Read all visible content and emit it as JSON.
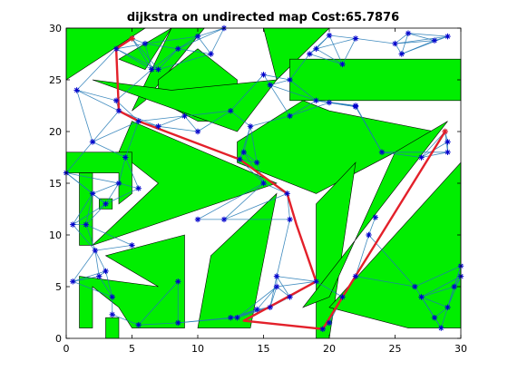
{
  "chart_data": {
    "type": "scatter",
    "title": "dijkstra on undirected map  Cost:65.7876",
    "xlabel": "",
    "ylabel": "",
    "xlim": [
      0,
      30
    ],
    "ylim": [
      0,
      30
    ],
    "xticks": [
      0,
      5,
      10,
      15,
      20,
      25,
      30
    ],
    "yticks": [
      0,
      5,
      10,
      15,
      20,
      25,
      30
    ],
    "colors": {
      "obstacle": "#00ee00",
      "edge": "#1f77b4",
      "path": "#e3202a",
      "node": "#0000cc"
    },
    "obstacles": [
      [
        [
          0,
          30
        ],
        [
          6,
          30
        ],
        [
          0,
          25
        ]
      ],
      [
        [
          4,
          27
        ],
        [
          8,
          30
        ],
        [
          6,
          26
        ]
      ],
      [
        [
          6,
          23
        ],
        [
          10.5,
          30
        ],
        [
          8,
          30
        ],
        [
          5,
          22
        ]
      ],
      [
        [
          7,
          25
        ],
        [
          10,
          28
        ],
        [
          13,
          25
        ],
        [
          13,
          21
        ],
        [
          10,
          21
        ],
        [
          7,
          23
        ]
      ],
      [
        [
          15,
          30
        ],
        [
          20,
          30
        ],
        [
          16,
          25
        ]
      ],
      [
        [
          17,
          27
        ],
        [
          30,
          27
        ],
        [
          30,
          23
        ],
        [
          17,
          23
        ]
      ],
      [
        [
          2,
          25
        ],
        [
          8,
          24
        ],
        [
          16,
          25
        ],
        [
          13,
          20
        ]
      ],
      [
        [
          13,
          19
        ],
        [
          18,
          23
        ],
        [
          20,
          22
        ],
        [
          28,
          20
        ],
        [
          25,
          18
        ],
        [
          19,
          14
        ],
        [
          13,
          17
        ]
      ],
      [
        [
          5,
          21
        ],
        [
          16,
          15
        ],
        [
          2,
          9
        ],
        [
          7,
          15
        ],
        [
          4,
          18
        ]
      ],
      [
        [
          0,
          18
        ],
        [
          5,
          18
        ],
        [
          5,
          14
        ],
        [
          4,
          13
        ],
        [
          4,
          16
        ],
        [
          0,
          16
        ]
      ],
      [
        [
          1,
          16
        ],
        [
          2,
          16
        ],
        [
          2,
          9
        ],
        [
          1,
          9
        ]
      ],
      [
        [
          2.5,
          13.5
        ],
        [
          3.5,
          13.5
        ],
        [
          3.5,
          12.5
        ],
        [
          2.5,
          12.5
        ]
      ],
      [
        [
          1,
          6
        ],
        [
          7,
          5
        ],
        [
          3,
          8
        ],
        [
          9,
          10
        ],
        [
          9,
          1
        ],
        [
          5,
          1
        ],
        [
          4,
          3
        ],
        [
          2,
          5
        ],
        [
          2,
          1
        ],
        [
          1,
          1
        ]
      ],
      [
        [
          11,
          8
        ],
        [
          16,
          14
        ],
        [
          14,
          1
        ],
        [
          10,
          1
        ]
      ],
      [
        [
          19,
          13
        ],
        [
          22,
          17
        ],
        [
          20,
          0
        ],
        [
          19,
          0
        ]
      ],
      [
        [
          25,
          18
        ],
        [
          29,
          21
        ],
        [
          18,
          3
        ],
        [
          20,
          4
        ]
      ],
      [
        [
          20,
          3
        ],
        [
          30,
          17
        ],
        [
          30,
          1
        ],
        [
          26,
          1
        ]
      ],
      [
        [
          3,
          2
        ],
        [
          4,
          2
        ],
        [
          4,
          0
        ],
        [
          3,
          0
        ]
      ]
    ],
    "nodes": [
      [
        5,
        29
      ],
      [
        0.8,
        24
      ],
      [
        3.8,
        23
      ],
      [
        4,
        22
      ],
      [
        3.8,
        28
      ],
      [
        0,
        16
      ],
      [
        0.5,
        11
      ],
      [
        0.5,
        5.5
      ],
      [
        2,
        19
      ],
      [
        2,
        14
      ],
      [
        2.5,
        6
      ],
      [
        3,
        6.5
      ],
      [
        3.5,
        4
      ],
      [
        5.5,
        14.5
      ],
      [
        4,
        15
      ],
      [
        4.5,
        17.5
      ],
      [
        5,
        9
      ],
      [
        5.5,
        21
      ],
      [
        6.5,
        26
      ],
      [
        5.5,
        1.3
      ],
      [
        3.5,
        2.3
      ],
      [
        8.5,
        1.5
      ],
      [
        8.5,
        5.5
      ],
      [
        10,
        11.5
      ],
      [
        12,
        11.5
      ],
      [
        12.5,
        2
      ],
      [
        13,
        2
      ],
      [
        13.5,
        18
      ],
      [
        13.2,
        17.3
      ],
      [
        14.5,
        17
      ],
      [
        15,
        15
      ],
      [
        15.5,
        24.5
      ],
      [
        16.8,
        14
      ],
      [
        17,
        11.5
      ],
      [
        19,
        5.5
      ],
      [
        16,
        6
      ],
      [
        16,
        5
      ],
      [
        17,
        4
      ],
      [
        15.5,
        3
      ],
      [
        14.5,
        2.8
      ],
      [
        19.5,
        0.9
      ],
      [
        20,
        1.5
      ],
      [
        21,
        4
      ],
      [
        22,
        6
      ],
      [
        23,
        10
      ],
      [
        24,
        18
      ],
      [
        27,
        17.5
      ],
      [
        28.8,
        20
      ],
      [
        29,
        19
      ],
      [
        29,
        18
      ],
      [
        30,
        7
      ],
      [
        30,
        6
      ],
      [
        29.5,
        5
      ],
      [
        29,
        3
      ],
      [
        28.5,
        1
      ],
      [
        28,
        2
      ],
      [
        27,
        4
      ],
      [
        26.5,
        5
      ],
      [
        29,
        29.2
      ],
      [
        28,
        28.8
      ],
      [
        25,
        28.5
      ],
      [
        26,
        29.5
      ],
      [
        22,
        29
      ],
      [
        20,
        29.3
      ],
      [
        19,
        28
      ],
      [
        18.5,
        27.5
      ],
      [
        21,
        26.5
      ],
      [
        25.5,
        27.5
      ],
      [
        17,
        25
      ],
      [
        17,
        21.5
      ],
      [
        22,
        22.5
      ],
      [
        15,
        25.5
      ],
      [
        11,
        27.5
      ],
      [
        12,
        30
      ],
      [
        10,
        29.2
      ],
      [
        8.5,
        28
      ],
      [
        6,
        28.5
      ],
      [
        7,
        26
      ],
      [
        12.5,
        22
      ],
      [
        14,
        20.5
      ],
      [
        10,
        20
      ],
      [
        9,
        21.5
      ],
      [
        7,
        20.5
      ],
      [
        3,
        13
      ],
      [
        1.5,
        11
      ],
      [
        2.2,
        8.5
      ],
      [
        22,
        22.4
      ],
      [
        20,
        22.8
      ],
      [
        19,
        23
      ],
      [
        23.5,
        11.7
      ]
    ],
    "path": [
      [
        5,
        29
      ],
      [
        3.8,
        28
      ],
      [
        4,
        22
      ],
      [
        5.5,
        21
      ],
      [
        13.2,
        17.3
      ],
      [
        16.8,
        14
      ],
      [
        17.5,
        11
      ],
      [
        19,
        5.5
      ],
      [
        13.5,
        1.7
      ],
      [
        19.5,
        0.9
      ],
      [
        28.8,
        20
      ]
    ],
    "start": [
      5,
      29
    ],
    "goal": [
      28.8,
      20
    ]
  }
}
